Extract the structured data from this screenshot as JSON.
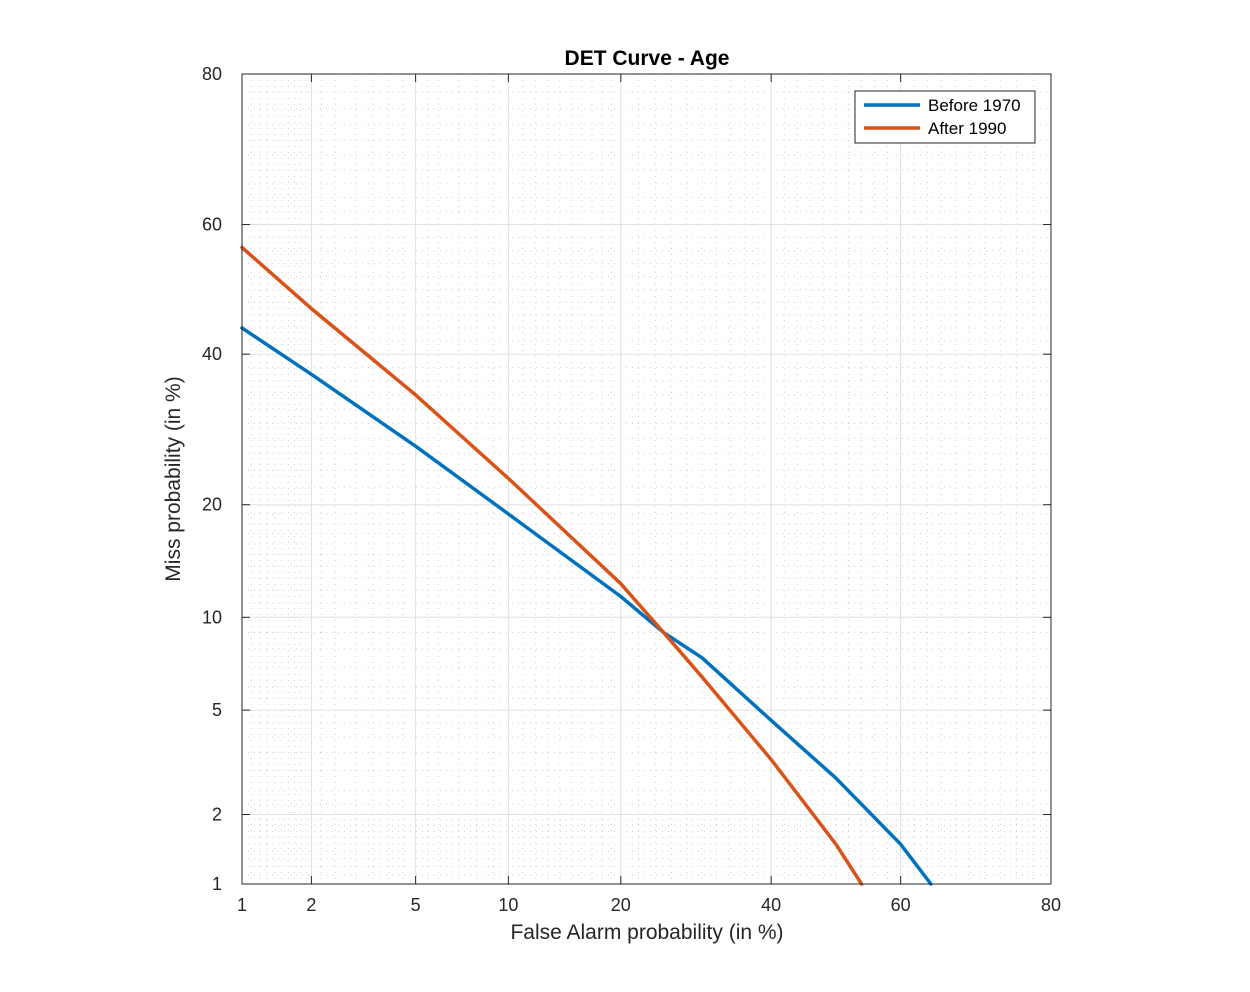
{
  "chart_data": {
    "type": "line",
    "title": "DET Curve - Age",
    "xlabel": "False Alarm probability (in %)",
    "ylabel": "Miss probability (in %)",
    "scale": "normal-deviate (probit)",
    "xlim": [
      1,
      80
    ],
    "ylim": [
      1,
      80
    ],
    "xticks": [
      1,
      2,
      5,
      10,
      20,
      40,
      60,
      80
    ],
    "yticks": [
      1,
      2,
      5,
      10,
      20,
      40,
      60,
      80
    ],
    "grid": true,
    "minor_grid": true,
    "legend_position": "top-right",
    "series": [
      {
        "name": "Before 1970",
        "color": "#0072BD",
        "points": [
          [
            1,
            44
          ],
          [
            2,
            37
          ],
          [
            5,
            27
          ],
          [
            10,
            19
          ],
          [
            20,
            11.5
          ],
          [
            25,
            9
          ],
          [
            30,
            7.5
          ],
          [
            40,
            4.6
          ],
          [
            50,
            2.8
          ],
          [
            60,
            1.5
          ],
          [
            64.5,
            1
          ]
        ]
      },
      {
        "name": "After 1990",
        "color": "#D95319",
        "points": [
          [
            1,
            56.5
          ],
          [
            2,
            47
          ],
          [
            5,
            34
          ],
          [
            10,
            23
          ],
          [
            20,
            12.5
          ],
          [
            25,
            9
          ],
          [
            30,
            6.5
          ],
          [
            40,
            3.3
          ],
          [
            50,
            1.5
          ],
          [
            54,
            1
          ]
        ]
      }
    ]
  }
}
